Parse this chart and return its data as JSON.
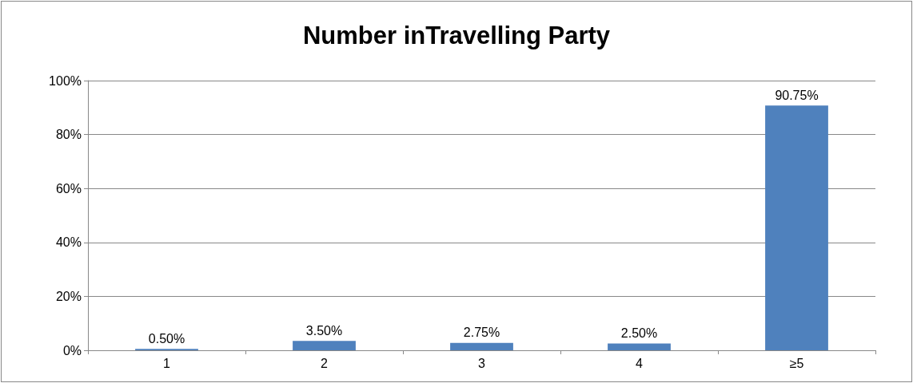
{
  "chart_data": {
    "type": "bar",
    "title": "Number inTravelling Party",
    "categories": [
      "1",
      "2",
      "3",
      "4",
      "≥5"
    ],
    "values": [
      0.5,
      3.5,
      2.75,
      2.5,
      90.75
    ],
    "value_labels": [
      "0.50%",
      "3.50%",
      "2.75%",
      "2.50%",
      "90.75%"
    ],
    "color": "#4f81bd",
    "ylim": [
      0,
      100
    ],
    "yticks": [
      {
        "value": 0,
        "label": "0%"
      },
      {
        "value": 20,
        "label": "20%"
      },
      {
        "value": 40,
        "label": "40%"
      },
      {
        "value": 60,
        "label": "60%"
      },
      {
        "value": 80,
        "label": "80%"
      },
      {
        "value": 100,
        "label": "100%"
      }
    ],
    "grid": "y"
  }
}
